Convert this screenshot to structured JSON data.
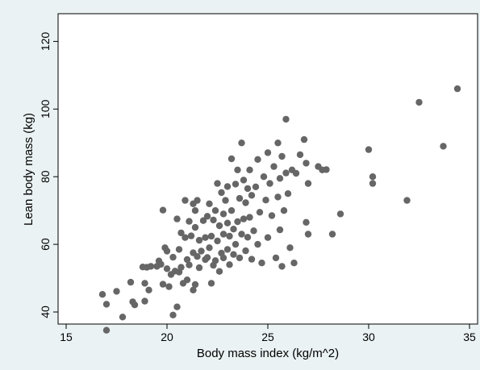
{
  "chart_data": {
    "type": "scatter",
    "xlabel": "Body mass index (kg/m^2)",
    "ylabel": "Lean body mass (kg)",
    "xlim": [
      15,
      35
    ],
    "ylim": [
      35,
      122
    ],
    "xticks": [
      15,
      20,
      25,
      30,
      35
    ],
    "yticks": [
      40,
      60,
      80,
      100,
      120
    ],
    "grid": false,
    "colors": {
      "background": "#eaf2f3",
      "plot_area": "#ffffff",
      "marker": "#666666",
      "axis": "#000000"
    },
    "points": [
      [
        16.8,
        45.2
      ],
      [
        17.0,
        42.3
      ],
      [
        17.0,
        34.6
      ],
      [
        17.5,
        46.1
      ],
      [
        17.8,
        38.5
      ],
      [
        18.2,
        48.8
      ],
      [
        18.3,
        43.0
      ],
      [
        18.4,
        42.1
      ],
      [
        18.8,
        53.3
      ],
      [
        18.9,
        43.2
      ],
      [
        18.9,
        48.5
      ],
      [
        19.0,
        53.2
      ],
      [
        19.1,
        46.5
      ],
      [
        19.2,
        53.5
      ],
      [
        19.5,
        53.5
      ],
      [
        19.6,
        55.1
      ],
      [
        19.7,
        54.1
      ],
      [
        19.8,
        70.1
      ],
      [
        19.8,
        48.2
      ],
      [
        19.9,
        59.0
      ],
      [
        20.0,
        52.8
      ],
      [
        20.0,
        58.0
      ],
      [
        20.1,
        47.5
      ],
      [
        20.2,
        51.1
      ],
      [
        20.3,
        56.2
      ],
      [
        20.3,
        39.1
      ],
      [
        20.4,
        52.1
      ],
      [
        20.5,
        67.5
      ],
      [
        20.5,
        41.5
      ],
      [
        20.6,
        51.8
      ],
      [
        20.6,
        58.5
      ],
      [
        20.7,
        53.2
      ],
      [
        20.7,
        63.4
      ],
      [
        20.8,
        48.5
      ],
      [
        20.9,
        73.0
      ],
      [
        20.9,
        62.0
      ],
      [
        21.0,
        55.5
      ],
      [
        21.0,
        49.5
      ],
      [
        21.1,
        53.9
      ],
      [
        21.1,
        66.8
      ],
      [
        21.2,
        62.5
      ],
      [
        21.3,
        72.0
      ],
      [
        21.3,
        57.5
      ],
      [
        21.3,
        46.5
      ],
      [
        21.4,
        48.1
      ],
      [
        21.4,
        65.0
      ],
      [
        21.4,
        70.0
      ],
      [
        21.5,
        56.4
      ],
      [
        21.5,
        73.0
      ],
      [
        21.6,
        61.2
      ],
      [
        21.6,
        53.1
      ],
      [
        21.7,
        58.0
      ],
      [
        21.8,
        67.0
      ],
      [
        21.9,
        62.0
      ],
      [
        21.9,
        55.5
      ],
      [
        22.0,
        68.3
      ],
      [
        22.0,
        56.1
      ],
      [
        22.1,
        72.0
      ],
      [
        22.1,
        59.0
      ],
      [
        22.2,
        48.5
      ],
      [
        22.2,
        62.4
      ],
      [
        22.3,
        53.8
      ],
      [
        22.3,
        67.2
      ],
      [
        22.4,
        55.2
      ],
      [
        22.4,
        70.0
      ],
      [
        22.5,
        61.0
      ],
      [
        22.5,
        78.0
      ],
      [
        22.6,
        65.5
      ],
      [
        22.6,
        52.0
      ],
      [
        22.7,
        57.4
      ],
      [
        22.7,
        75.3
      ],
      [
        22.8,
        63.0
      ],
      [
        22.8,
        69.0
      ],
      [
        22.8,
        56.0
      ],
      [
        22.9,
        73.0
      ],
      [
        23.0,
        66.3
      ],
      [
        23.0,
        58.5
      ],
      [
        23.0,
        77.1
      ],
      [
        23.1,
        54.0
      ],
      [
        23.1,
        62.4
      ],
      [
        23.2,
        85.3
      ],
      [
        23.2,
        70.0
      ],
      [
        23.3,
        57.0
      ],
      [
        23.3,
        64.5
      ],
      [
        23.4,
        77.8
      ],
      [
        23.4,
        60.0
      ],
      [
        23.5,
        66.7
      ],
      [
        23.5,
        82.0
      ],
      [
        23.6,
        56.0
      ],
      [
        23.6,
        73.6
      ],
      [
        23.7,
        90.0
      ],
      [
        23.7,
        63.0
      ],
      [
        23.8,
        67.5
      ],
      [
        23.8,
        79.0
      ],
      [
        23.9,
        58.1
      ],
      [
        23.9,
        72.3
      ],
      [
        24.0,
        76.5
      ],
      [
        24.0,
        62.1
      ],
      [
        24.1,
        82.0
      ],
      [
        24.1,
        68.0
      ],
      [
        24.2,
        55.6
      ],
      [
        24.2,
        74.5
      ],
      [
        24.3,
        64.0
      ],
      [
        24.4,
        77.0
      ],
      [
        24.5,
        60.0
      ],
      [
        24.5,
        85.1
      ],
      [
        24.6,
        69.5
      ],
      [
        24.7,
        54.5
      ],
      [
        24.8,
        80.0
      ],
      [
        24.9,
        73.1
      ],
      [
        25.0,
        87.1
      ],
      [
        25.0,
        62.0
      ],
      [
        25.1,
        78.0
      ],
      [
        25.2,
        68.5
      ],
      [
        25.3,
        83.0
      ],
      [
        25.4,
        56.0
      ],
      [
        25.5,
        74.0
      ],
      [
        25.5,
        90.0
      ],
      [
        25.6,
        79.5
      ],
      [
        25.6,
        64.3
      ],
      [
        25.7,
        86.0
      ],
      [
        25.7,
        53.5
      ],
      [
        25.8,
        70.0
      ],
      [
        25.9,
        81.1
      ],
      [
        25.9,
        97.0
      ],
      [
        26.0,
        75.0
      ],
      [
        26.1,
        59.0
      ],
      [
        26.2,
        82.0
      ],
      [
        26.3,
        54.5
      ],
      [
        26.4,
        81.0
      ],
      [
        26.6,
        86.5
      ],
      [
        26.8,
        91.0
      ],
      [
        26.9,
        84.0
      ],
      [
        26.9,
        66.5
      ],
      [
        27.0,
        63.0
      ],
      [
        27.0,
        78.0
      ],
      [
        27.5,
        83.0
      ],
      [
        27.7,
        82.0
      ],
      [
        27.9,
        82.1
      ],
      [
        28.2,
        63.0
      ],
      [
        28.6,
        69.0
      ],
      [
        30.0,
        88.0
      ],
      [
        30.2,
        80.0
      ],
      [
        30.2,
        78.0
      ],
      [
        31.9,
        73.0
      ],
      [
        32.5,
        102.0
      ],
      [
        33.7,
        89.0
      ],
      [
        34.4,
        106.0
      ]
    ]
  }
}
